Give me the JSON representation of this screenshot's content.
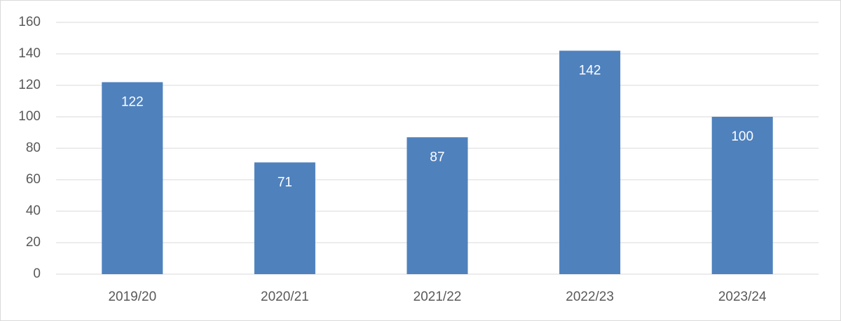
{
  "chart_data": {
    "type": "bar",
    "categories": [
      "2019/20",
      "2020/21",
      "2021/22",
      "2022/23",
      "2023/24"
    ],
    "values": [
      122,
      71,
      87,
      142,
      100
    ],
    "color": "#4f81bd",
    "ylim": [
      0,
      160
    ],
    "yticks": [
      0,
      20,
      40,
      60,
      80,
      100,
      120,
      140,
      160
    ],
    "grid": true
  }
}
